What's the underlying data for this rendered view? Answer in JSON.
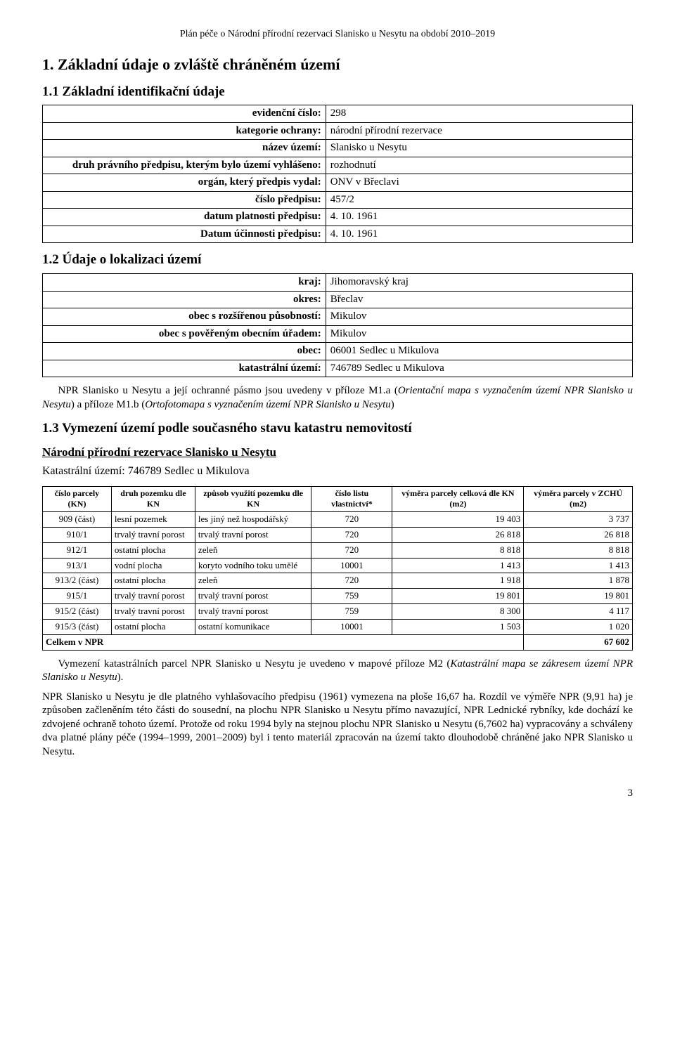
{
  "header": "Plán péče o Národní přírodní rezervaci Slanisko u Nesytu na období 2010–2019",
  "s1_title": "1. Základní údaje o zvláště chráněném území",
  "s11_title": "1.1 Základní identifikační údaje",
  "s11_rows": [
    {
      "k": "evidenční číslo:",
      "v": "298"
    },
    {
      "k": "kategorie ochrany:",
      "v": "národní přírodní rezervace"
    },
    {
      "k": "název území:",
      "v": "Slanisko u Nesytu"
    },
    {
      "k": "druh právního předpisu, kterým bylo území vyhlášeno:",
      "v": "rozhodnutí"
    },
    {
      "k": "orgán, který předpis vydal:",
      "v": "ONV v Břeclavi"
    },
    {
      "k": "číslo předpisu:",
      "v": "457/2"
    },
    {
      "k": "datum platnosti předpisu:",
      "v": "4. 10. 1961"
    },
    {
      "k": "Datum účinnosti předpisu:",
      "v": "4. 10. 1961"
    }
  ],
  "s12_title": "1.2 Údaje o lokalizaci území",
  "s12_rows": [
    {
      "k": "kraj:",
      "v": "Jihomoravský kraj"
    },
    {
      "k": "okres:",
      "v": "Břeclav"
    },
    {
      "k": "obec s rozšířenou působností:",
      "v": "Mikulov"
    },
    {
      "k": "obec s pověřeným obecním úřadem:",
      "v": "Mikulov"
    },
    {
      "k": "obec:",
      "v": "06001 Sedlec u Mikulova"
    },
    {
      "k": "katastrální území:",
      "v": "746789 Sedlec u Mikulova"
    }
  ],
  "p12_1a": "NPR Slanisko u Nesytu a její ochranné pásmo jsou uvedeny v příloze M1.a (",
  "p12_1b": "Orientační mapa s vyznačením území NPR Slanisko u Nesytu",
  "p12_1c": ") a příloze M1.b (",
  "p12_1d": "Ortofotomapa s vyznačením území NPR Slanisko u Nesytu",
  "p12_1e": ")",
  "s13_title": "1.3 Vymezení území podle současného stavu katastru nemovitostí",
  "s13_underline": "Národní přírodní rezervace Slanisko u Nesytu",
  "s13_sub": "Katastrální území: 746789 Sedlec u Mikulova",
  "table_headers": [
    "číslo parcely (KN)",
    "druh pozemku dle KN",
    "způsob využití pozemku dle KN",
    "číslo listu vlastnictví*",
    "výměra parcely celková dle KN (m2)",
    "výměra parcely v ZCHÚ (m2)"
  ],
  "table_rows": [
    {
      "c0": "909 (část)",
      "c1": "lesní pozemek",
      "c2": "les jiný než hospodářský",
      "c3": "720",
      "c4": "19 403",
      "c5": "3 737"
    },
    {
      "c0": "910/1",
      "c1": "trvalý travní porost",
      "c2": "trvalý travní porost",
      "c3": "720",
      "c4": "26 818",
      "c5": "26 818"
    },
    {
      "c0": "912/1",
      "c1": "ostatní plocha",
      "c2": "zeleň",
      "c3": "720",
      "c4": "8 818",
      "c5": "8 818"
    },
    {
      "c0": "913/1",
      "c1": "vodní plocha",
      "c2": "koryto vodního toku umělé",
      "c3": "10001",
      "c4": "1 413",
      "c5": "1 413"
    },
    {
      "c0": "913/2 (část)",
      "c1": "ostatní plocha",
      "c2": "zeleň",
      "c3": "720",
      "c4": "1 918",
      "c5": "1 878"
    },
    {
      "c0": "915/1",
      "c1": "trvalý travní porost",
      "c2": "trvalý travní porost",
      "c3": "759",
      "c4": "19 801",
      "c5": "19 801"
    },
    {
      "c0": "915/2 (část)",
      "c1": "trvalý travní porost",
      "c2": "trvalý travní porost",
      "c3": "759",
      "c4": "8 300",
      "c5": "4 117"
    },
    {
      "c0": "915/3 (část)",
      "c1": "ostatní plocha",
      "c2": "ostatní komunikace",
      "c3": "10001",
      "c4": "1 503",
      "c5": "1 020"
    }
  ],
  "table_total_label": "Celkem v NPR",
  "table_total_value": "67 602",
  "p13_1a": "Vymezení katastrálních parcel NPR Slanisko u Nesytu je uvedeno v mapové příloze M2 (",
  "p13_1b": "Katastrální mapa se zákresem území NPR Slanisko u Nesytu",
  "p13_1c": ").",
  "p13_2": "NPR Slanisko u Nesytu je dle platného vyhlašovacího předpisu (1961) vymezena na ploše 16,67 ha. Rozdíl ve výměře NPR (9,91 ha) je způsoben začleněním této části do sousední, na plochu NPR Slanisko u Nesytu přímo navazující, NPR Lednické rybníky, kde dochází ke zdvojené ochraně tohoto území. Protože od roku 1994 byly na stejnou plochu NPR Slanisko u Nesytu (6,7602 ha) vypracovány a schváleny dva platné plány péče (1994–1999, 2001–2009) byl i tento materiál zpracován na území takto dlouhodobě chráněné jako NPR Slanisko u Nesytu.",
  "page_number": "3"
}
